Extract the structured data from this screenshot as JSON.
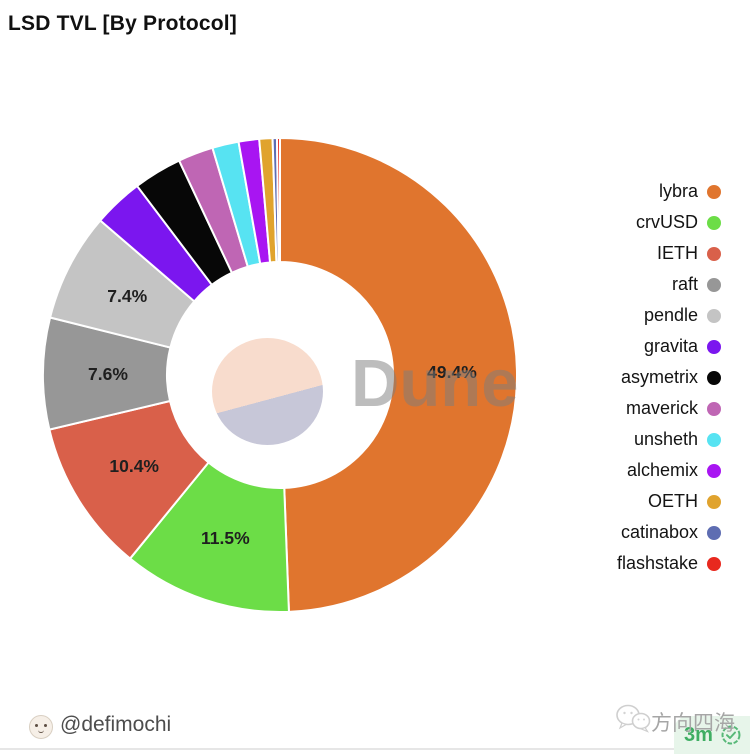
{
  "title": "LSD TVL [By Protocol]",
  "watermark": {
    "text": "Dune"
  },
  "chart_data": {
    "type": "pie",
    "donut": true,
    "title": "LSD TVL [By Protocol]",
    "unit": "%",
    "legend_position": "right",
    "start_angle_deg": 0,
    "direction": "clockwise",
    "label_threshold_pct": 5,
    "series": [
      {
        "name": "lybra",
        "value": 49.4,
        "label": "49.4%",
        "color": "#E0752E"
      },
      {
        "name": "crvUSD",
        "value": 11.5,
        "label": "11.5%",
        "color": "#6CDD47"
      },
      {
        "name": "IETH",
        "value": 10.4,
        "label": "10.4%",
        "color": "#D9604A"
      },
      {
        "name": "raft",
        "value": 7.6,
        "label": "7.6%",
        "color": "#979797"
      },
      {
        "name": "pendle",
        "value": 7.4,
        "label": "7.4%",
        "color": "#C4C4C4"
      },
      {
        "name": "gravita",
        "value": 3.4,
        "label": "",
        "color": "#7B16EF"
      },
      {
        "name": "asymetrix",
        "value": 3.3,
        "label": "",
        "color": "#070707"
      },
      {
        "name": "maverick",
        "value": 2.4,
        "label": "",
        "color": "#BF66B4"
      },
      {
        "name": "unsheth",
        "value": 1.8,
        "label": "",
        "color": "#57E3F2"
      },
      {
        "name": "alchemix",
        "value": 1.4,
        "label": "",
        "color": "#A815F2"
      },
      {
        "name": "OETH",
        "value": 0.9,
        "label": "",
        "color": "#E0A32E"
      },
      {
        "name": "catinabox",
        "value": 0.3,
        "label": "",
        "color": "#5E6DB2"
      },
      {
        "name": "flashstake",
        "value": 0.2,
        "label": "",
        "color": "#E8281E"
      }
    ],
    "center_logo_colors": {
      "top": "#F8DCCD",
      "bottom": "#C7C7D8"
    }
  },
  "footer": {
    "author_handle": "@defimochi",
    "channel_name": "方向四海",
    "badge_text": "3m",
    "badge_color": "#3FAE63"
  }
}
